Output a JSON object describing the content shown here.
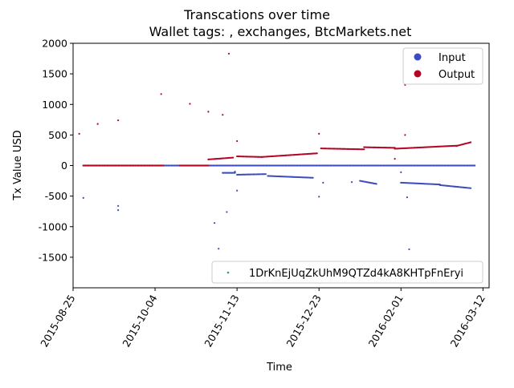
{
  "chart_data": {
    "type": "scatter",
    "title": "Transcations over time",
    "subtitle": "Wallet tags: , exchanges, BtcMarkets.net",
    "xlabel": "Time",
    "ylabel": "Tx Value USD",
    "xlim": [
      "2015-08-25",
      "2016-03-15"
    ],
    "ylim": [
      -2000,
      2000
    ],
    "x_ticks": [
      "2015-08-25",
      "2015-10-04",
      "2015-11-13",
      "2015-12-23",
      "2016-02-01",
      "2016-03-12"
    ],
    "y_ticks": [
      -1500,
      -1000,
      -500,
      0,
      500,
      1000,
      1500,
      2000
    ],
    "legend": {
      "placement": "top-right",
      "entries": [
        {
          "label": "Input",
          "color": "#3b4cc0"
        },
        {
          "label": "Output",
          "color": "#b40426"
        }
      ]
    },
    "address_legend": {
      "placement": "lower-right",
      "label": "1DrKnEjUqZkUhM9QTZd4kA8KHTpFnEryi",
      "color": "#2a9d8f"
    },
    "series": [
      {
        "name": "Output",
        "color": "#b40426",
        "points": [
          [
            "2015-08-28",
            520
          ],
          [
            "2015-09-06",
            680
          ],
          [
            "2015-09-16",
            740
          ],
          [
            "2015-10-07",
            1170
          ],
          [
            "2015-10-21",
            1010
          ],
          [
            "2015-10-30",
            880
          ],
          [
            "2015-11-06",
            830
          ],
          [
            "2015-11-09",
            1830
          ],
          [
            "2015-11-13",
            400
          ],
          [
            "2015-12-23",
            520
          ],
          [
            "2016-02-03",
            1320
          ],
          [
            "2016-02-03",
            500
          ],
          [
            "2016-01-29",
            110
          ]
        ],
        "segments": [
          {
            "from": "2015-08-30",
            "to": "2015-10-08",
            "from_value": 0,
            "to_value": 0
          },
          {
            "from": "2015-10-16",
            "to": "2015-10-30",
            "from_value": 0,
            "to_value": 0
          },
          {
            "from": "2015-10-30",
            "to": "2015-11-11",
            "from_value": 100,
            "to_value": 130
          },
          {
            "from": "2015-11-13",
            "to": "2015-11-25",
            "from_value": 150,
            "to_value": 140
          },
          {
            "from": "2015-11-25",
            "to": "2015-12-22",
            "from_value": 140,
            "to_value": 200
          },
          {
            "from": "2015-12-24",
            "to": "2016-01-14",
            "from_value": 280,
            "to_value": 265
          },
          {
            "from": "2016-01-14",
            "to": "2016-01-29",
            "from_value": 300,
            "to_value": 290
          },
          {
            "from": "2016-01-29",
            "to": "2016-02-28",
            "from_value": 275,
            "to_value": 325
          },
          {
            "from": "2016-02-28",
            "to": "2016-03-06",
            "from_value": 320,
            "to_value": 380
          }
        ]
      },
      {
        "name": "Input",
        "color": "#3b4cc0",
        "points": [
          [
            "2015-08-30",
            -530
          ],
          [
            "2015-09-16",
            -660
          ],
          [
            "2015-09-16",
            -730
          ],
          [
            "2015-11-02",
            -940
          ],
          [
            "2015-11-04",
            -1360
          ],
          [
            "2015-11-08",
            -760
          ],
          [
            "2015-11-13",
            -410
          ],
          [
            "2015-11-12",
            -100
          ],
          [
            "2015-12-23",
            -510
          ],
          [
            "2015-12-25",
            -280
          ],
          [
            "2016-01-08",
            -270
          ],
          [
            "2016-02-04",
            -520
          ],
          [
            "2016-02-05",
            -1370
          ],
          [
            "2016-02-01",
            -110
          ]
        ],
        "segments": [
          {
            "from": "2015-08-30",
            "to": "2016-03-08",
            "from_value": 0,
            "to_value": 0
          },
          {
            "from": "2015-11-06",
            "to": "2015-11-12",
            "from_value": -120,
            "to_value": -120
          },
          {
            "from": "2015-11-13",
            "to": "2015-11-27",
            "from_value": -150,
            "to_value": -140
          },
          {
            "from": "2015-11-28",
            "to": "2015-12-20",
            "from_value": -170,
            "to_value": -200
          },
          {
            "from": "2016-01-12",
            "to": "2016-01-20",
            "from_value": -250,
            "to_value": -300
          },
          {
            "from": "2016-02-01",
            "to": "2016-02-20",
            "from_value": -280,
            "to_value": -310
          },
          {
            "from": "2016-02-20",
            "to": "2016-03-06",
            "from_value": -320,
            "to_value": -370
          }
        ]
      }
    ]
  }
}
